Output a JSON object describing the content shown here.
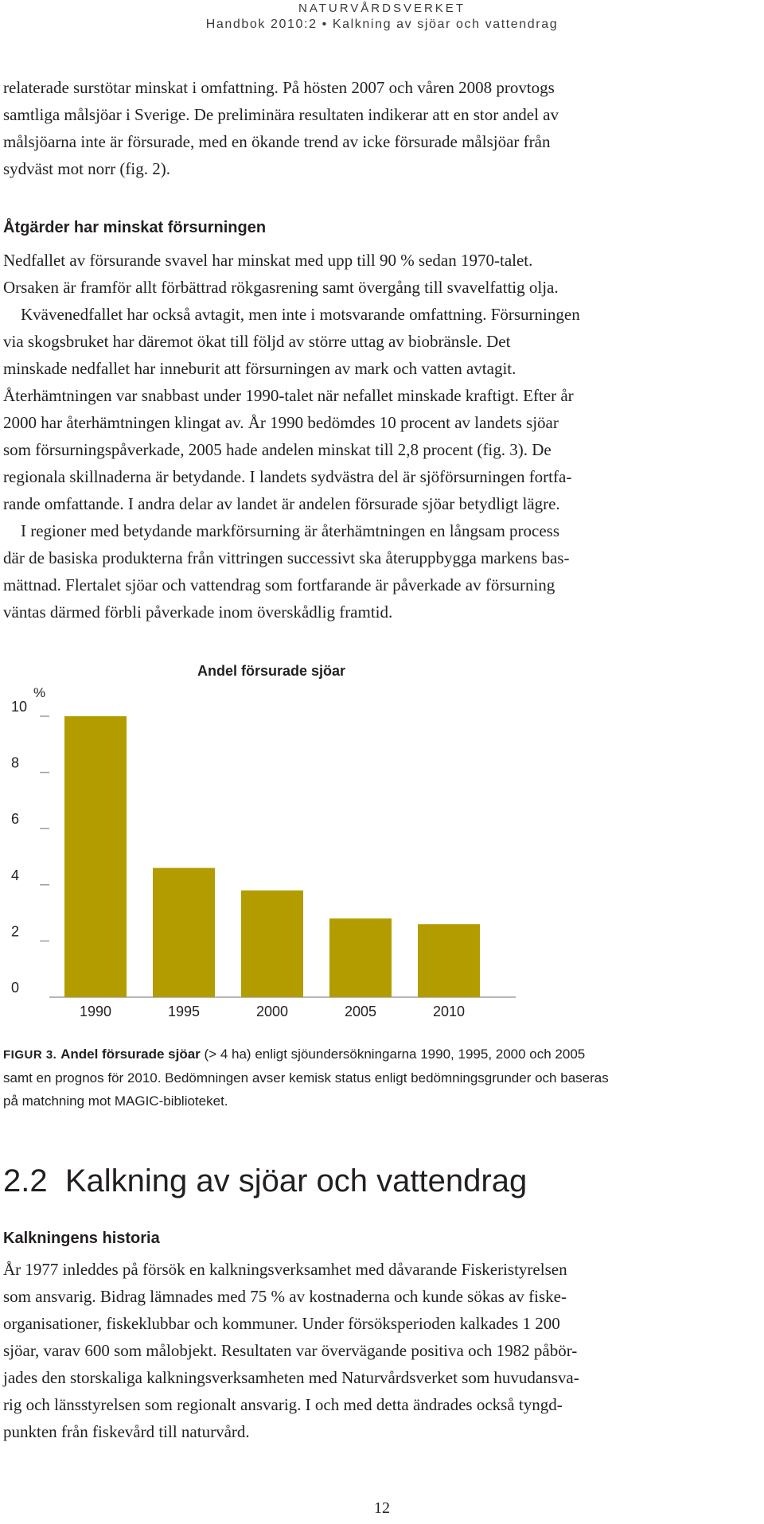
{
  "header": {
    "org": "NATURVÅRDSVERKET",
    "handbook": "Handbok 2010:2 • Kalkning av sjöar och vattendrag"
  },
  "intro_paragraph": {
    "lines": [
      "relaterade surstötar minskat i omfattning. På hösten 2007 och våren 2008 provtogs",
      "samtliga målsjöar i Sverige. De preliminära resultaten indikerar att en stor andel av",
      "målsjöarna inte är försurade, med en ökande trend av icke försurade målsjöar från",
      "sydväst mot norr (fig. 2)."
    ]
  },
  "subheading_1": "Åtgärder har minskat försurningen",
  "paragraph_2": {
    "lines": [
      "Nedfallet av försurande svavel har minskat med upp till 90 % sedan 1970-talet.",
      "Orsaken är framför allt förbättrad rökgasrening samt övergång till svavelfattig olja.",
      "Kvävenedfallet har också avtagit, men inte i motsvarande omfattning. Försurningen",
      "via skogsbruket har däremot ökat till följd av större uttag av biobränsle. Det",
      "minskade nedfallet har inneburit att försurningen av mark och vatten avtagit.",
      "Återhämtningen var snabbast under 1990-talet när nefallet minskade kraftigt. Efter år",
      "2000 har återhämtningen klingat av. År 1990 bedömdes 10 procent av landets sjöar",
      "som försurningspåverkade, 2005 hade andelen minskat till 2,8 procent (fig. 3). De",
      "regionala skillnaderna är betydande. I landets sydvästra del är sjöförsurningen fortfa-",
      "rande omfattande. I andra delar av landet är andelen försurade sjöar betydligt lägre."
    ]
  },
  "paragraph_3": {
    "lines": [
      "I regioner med betydande markförsurning är återhämtningen en långsam process",
      "där de basiska produkterna från vittringen successivt ska återuppbygga markens bas-",
      "mättnad. Flertalet sjöar och vattendrag som fortfarande är påverkade av försurning",
      "väntas därmed förbli påverkade inom överskådlig framtid."
    ]
  },
  "chart_data": {
    "type": "bar",
    "title": "Andel försurade sjöar",
    "ylabel": "%",
    "xlabel": "",
    "categories": [
      "1990",
      "1995",
      "2000",
      "2005",
      "2010"
    ],
    "values": [
      10.0,
      4.6,
      3.8,
      2.8,
      2.6
    ],
    "ylim": [
      0,
      10
    ],
    "yticks": [
      "0",
      "2",
      "4",
      "6",
      "8",
      "10"
    ],
    "grid": false,
    "bar_color": "#b39c00"
  },
  "caption": {
    "fig_label": "FIGUR 3.",
    "bold_title": "Andel försurade sjöar",
    "line1_rest": "(> 4 ha) enligt sjöundersökningarna 1990, 1995, 2000 och 2005",
    "line2": "samt en prognos för 2010. Bedömningen avser kemisk status enligt bedömningsgrunder och baseras",
    "line3": "på matchning mot MAGIC-biblioteket."
  },
  "section_title": "2.2  Kalkning av sjöar och vattendrag",
  "subheading_2": "Kalkningens historia",
  "paragraph_4": {
    "lines": [
      "År 1977 inleddes på försök en kalkningsverksamhet med dåvarande Fiskeristyrelsen",
      "som ansvarig. Bidrag lämnades med 75 % av kostnaderna och kunde sökas av fiske-",
      "organisationer, fiskeklubbar och kommuner. Under försöksperioden kalkades 1 200",
      "sjöar, varav 600 som målobjekt. Resultaten var övervägande positiva och 1982 påbör-",
      "jades den storskaliga kalkningsverksamheten med Naturvårdsverket som huvudansva-",
      "rig och länsstyrelsen som regionalt ansvarig. I och med detta ändrades också tyngd-",
      "punkten från fiskevård till naturvård."
    ]
  },
  "page_number": "12"
}
